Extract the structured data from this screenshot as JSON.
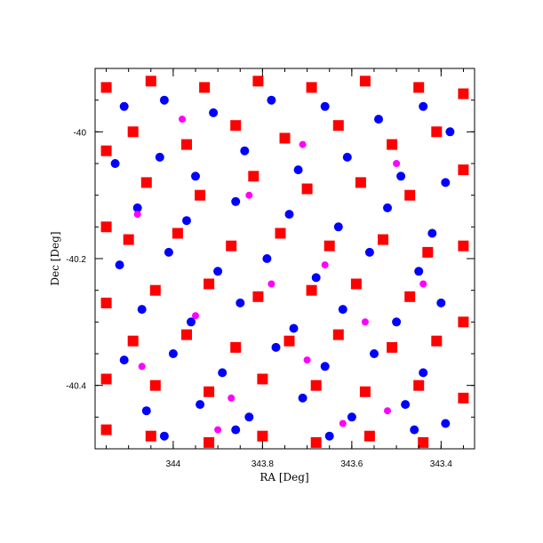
{
  "chart_data": {
    "type": "scatter",
    "title": "",
    "xlabel": "RA [Deg]",
    "ylabel": "Dec [Deg]",
    "xlim": [
      344.175,
      343.325
    ],
    "ylim": [
      -40.5,
      -39.9
    ],
    "x_reversed": true,
    "grid": false,
    "legend": "none",
    "xticks": [
      {
        "value": 344.0,
        "label": "344"
      },
      {
        "value": 343.8,
        "label": "343.8"
      },
      {
        "value": 343.6,
        "label": "343.6"
      },
      {
        "value": 343.4,
        "label": "343.4"
      }
    ],
    "yticks": [
      {
        "value": -40.0,
        "label": "-40"
      },
      {
        "value": -40.2,
        "label": "-40.2"
      },
      {
        "value": -40.4,
        "label": "-40.4"
      }
    ],
    "series": [
      {
        "marker": "circle",
        "color": "#0000ff",
        "points": [
          [
            344.11,
            -39.96
          ],
          [
            344.02,
            -39.95
          ],
          [
            343.91,
            -39.97
          ],
          [
            343.78,
            -39.95
          ],
          [
            343.66,
            -39.96
          ],
          [
            343.54,
            -39.98
          ],
          [
            343.44,
            -39.96
          ],
          [
            343.38,
            -40.0
          ],
          [
            344.13,
            -40.05
          ],
          [
            344.03,
            -40.04
          ],
          [
            343.95,
            -40.07
          ],
          [
            343.84,
            -40.03
          ],
          [
            343.72,
            -40.06
          ],
          [
            343.61,
            -40.04
          ],
          [
            343.49,
            -40.07
          ],
          [
            343.39,
            -40.08
          ],
          [
            344.08,
            -40.12
          ],
          [
            343.97,
            -40.14
          ],
          [
            343.86,
            -40.11
          ],
          [
            343.74,
            -40.13
          ],
          [
            343.63,
            -40.15
          ],
          [
            343.52,
            -40.12
          ],
          [
            343.42,
            -40.16
          ],
          [
            344.12,
            -40.21
          ],
          [
            344.01,
            -40.19
          ],
          [
            343.9,
            -40.22
          ],
          [
            343.79,
            -40.2
          ],
          [
            343.68,
            -40.23
          ],
          [
            343.56,
            -40.19
          ],
          [
            343.45,
            -40.22
          ],
          [
            344.07,
            -40.28
          ],
          [
            343.96,
            -40.3
          ],
          [
            343.85,
            -40.27
          ],
          [
            343.73,
            -40.31
          ],
          [
            343.62,
            -40.28
          ],
          [
            343.5,
            -40.3
          ],
          [
            343.4,
            -40.27
          ],
          [
            344.11,
            -40.36
          ],
          [
            344.0,
            -40.35
          ],
          [
            343.89,
            -40.38
          ],
          [
            343.77,
            -40.34
          ],
          [
            343.66,
            -40.37
          ],
          [
            343.55,
            -40.35
          ],
          [
            343.44,
            -40.38
          ],
          [
            344.06,
            -40.44
          ],
          [
            343.94,
            -40.43
          ],
          [
            343.83,
            -40.45
          ],
          [
            343.71,
            -40.42
          ],
          [
            343.6,
            -40.45
          ],
          [
            343.48,
            -40.43
          ],
          [
            343.39,
            -40.46
          ],
          [
            344.02,
            -40.48
          ],
          [
            343.86,
            -40.47
          ],
          [
            343.65,
            -40.48
          ],
          [
            343.46,
            -40.47
          ]
        ]
      },
      {
        "marker": "square",
        "color": "#ff0000",
        "points": [
          [
            344.15,
            -39.93
          ],
          [
            344.05,
            -39.92
          ],
          [
            343.93,
            -39.93
          ],
          [
            343.81,
            -39.92
          ],
          [
            343.69,
            -39.93
          ],
          [
            343.57,
            -39.92
          ],
          [
            343.45,
            -39.93
          ],
          [
            343.35,
            -39.94
          ],
          [
            344.15,
            -40.03
          ],
          [
            344.15,
            -40.15
          ],
          [
            344.15,
            -40.27
          ],
          [
            344.15,
            -40.39
          ],
          [
            344.15,
            -40.47
          ],
          [
            343.35,
            -40.06
          ],
          [
            343.35,
            -40.18
          ],
          [
            343.35,
            -40.3
          ],
          [
            343.35,
            -40.42
          ],
          [
            344.05,
            -40.48
          ],
          [
            343.92,
            -40.49
          ],
          [
            343.8,
            -40.48
          ],
          [
            343.68,
            -40.49
          ],
          [
            343.56,
            -40.48
          ],
          [
            343.44,
            -40.49
          ],
          [
            344.09,
            -40.0
          ],
          [
            343.97,
            -40.02
          ],
          [
            343.86,
            -39.99
          ],
          [
            343.75,
            -40.01
          ],
          [
            343.63,
            -39.99
          ],
          [
            343.51,
            -40.02
          ],
          [
            343.41,
            -40.0
          ],
          [
            344.06,
            -40.08
          ],
          [
            343.94,
            -40.1
          ],
          [
            343.82,
            -40.07
          ],
          [
            343.7,
            -40.09
          ],
          [
            343.58,
            -40.08
          ],
          [
            343.47,
            -40.1
          ],
          [
            344.1,
            -40.17
          ],
          [
            343.99,
            -40.16
          ],
          [
            343.87,
            -40.18
          ],
          [
            343.76,
            -40.16
          ],
          [
            343.65,
            -40.18
          ],
          [
            343.53,
            -40.17
          ],
          [
            343.43,
            -40.19
          ],
          [
            344.04,
            -40.25
          ],
          [
            343.92,
            -40.24
          ],
          [
            343.81,
            -40.26
          ],
          [
            343.69,
            -40.25
          ],
          [
            343.59,
            -40.24
          ],
          [
            343.47,
            -40.26
          ],
          [
            344.09,
            -40.33
          ],
          [
            343.97,
            -40.32
          ],
          [
            343.86,
            -40.34
          ],
          [
            343.74,
            -40.33
          ],
          [
            343.63,
            -40.32
          ],
          [
            343.51,
            -40.34
          ],
          [
            343.41,
            -40.33
          ],
          [
            344.04,
            -40.4
          ],
          [
            343.92,
            -40.41
          ],
          [
            343.8,
            -40.39
          ],
          [
            343.68,
            -40.4
          ],
          [
            343.57,
            -40.41
          ],
          [
            343.45,
            -40.4
          ]
        ]
      },
      {
        "marker": "circle",
        "color": "#ff00ff",
        "points": [
          [
            343.98,
            -39.98
          ],
          [
            343.71,
            -40.02
          ],
          [
            343.5,
            -40.05
          ],
          [
            344.08,
            -40.13
          ],
          [
            343.83,
            -40.1
          ],
          [
            343.66,
            -40.21
          ],
          [
            343.44,
            -40.24
          ],
          [
            343.95,
            -40.29
          ],
          [
            343.78,
            -40.24
          ],
          [
            343.57,
            -40.3
          ],
          [
            344.07,
            -40.37
          ],
          [
            343.87,
            -40.42
          ],
          [
            343.7,
            -40.36
          ],
          [
            343.52,
            -40.44
          ],
          [
            343.9,
            -40.47
          ],
          [
            343.62,
            -40.46
          ]
        ]
      }
    ]
  }
}
